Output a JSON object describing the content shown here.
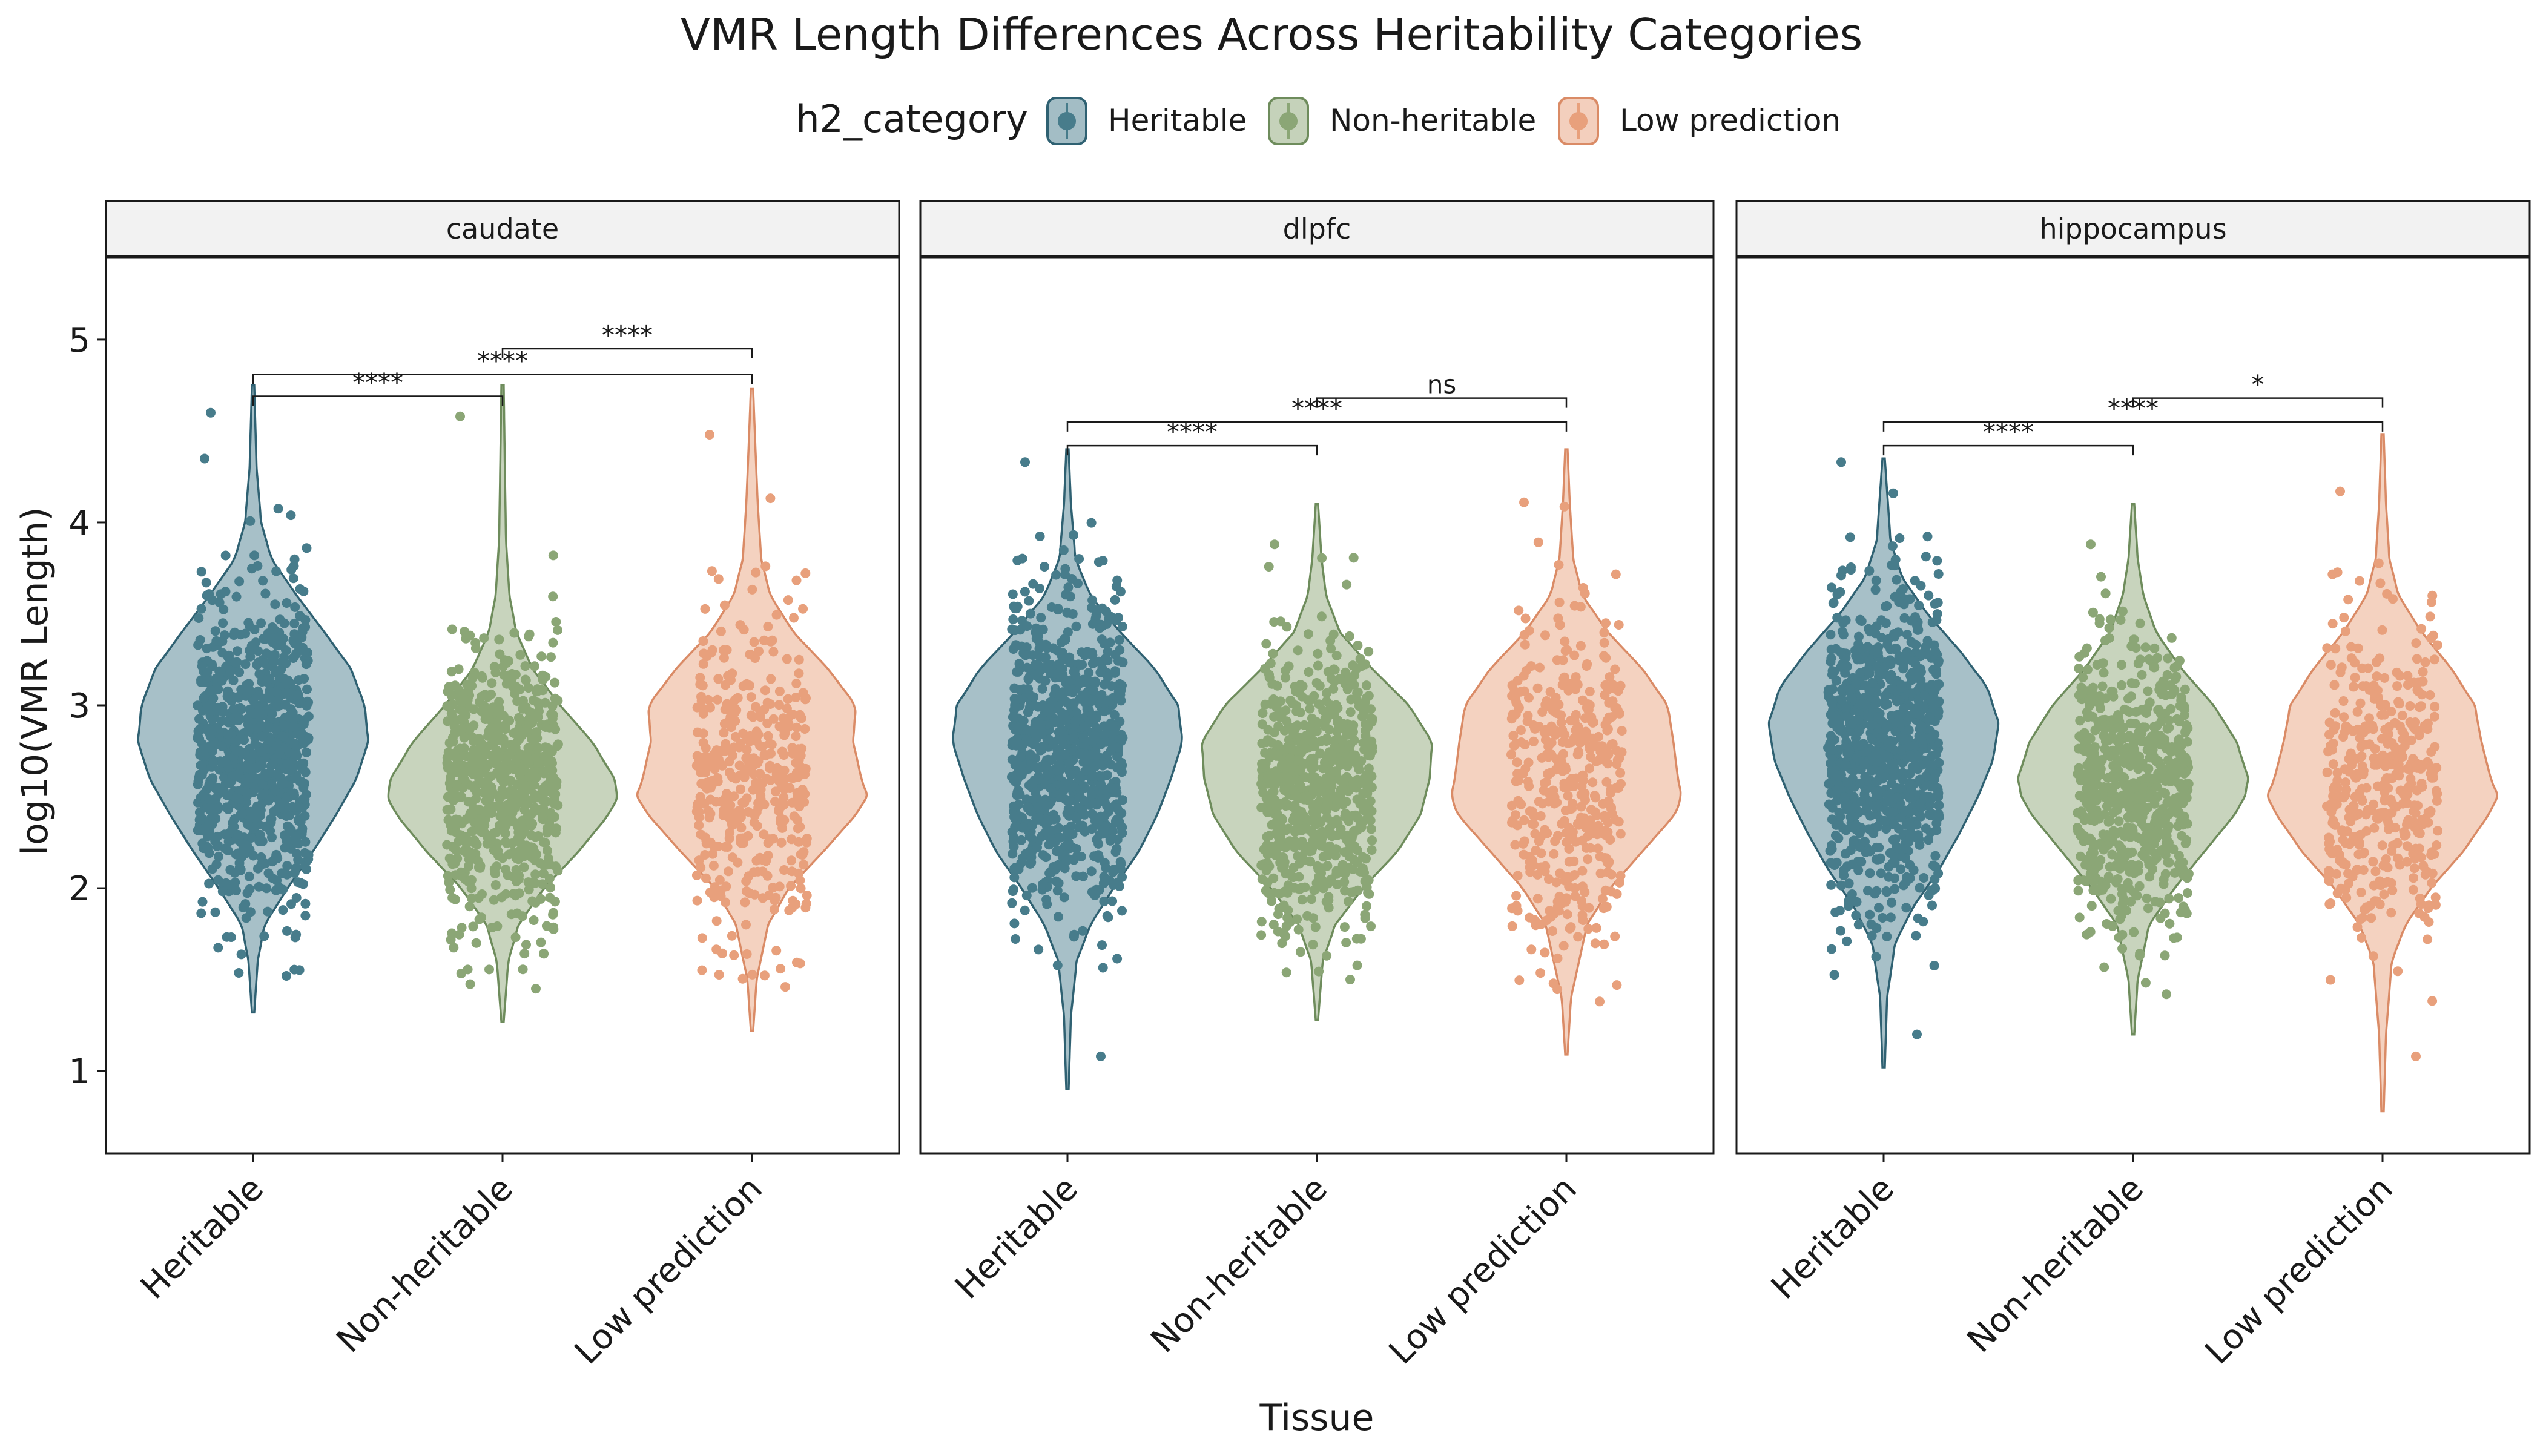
{
  "chart_data": {
    "type": "violin",
    "title": "VMR Length Differences Across Heritability Categories",
    "xlabel": "Tissue",
    "ylabel": "log10(VMR Length)",
    "ylim": [
      0.55,
      5.45
    ],
    "yticks": [
      1,
      2,
      3,
      4,
      5
    ],
    "legend": {
      "title": "h2_category",
      "position": "top",
      "entries": [
        {
          "label": "Heritable",
          "color": "#477C8B"
        },
        {
          "label": "Non-heritable",
          "color": "#8BA676"
        },
        {
          "label": "Low prediction",
          "color": "#E8A07C"
        }
      ]
    },
    "categories": [
      "Heritable",
      "Non-heritable",
      "Low prediction"
    ],
    "panels": [
      {
        "tissue": "caudate",
        "series": [
          {
            "name": "Heritable",
            "min": 1.32,
            "max": 4.75,
            "points_min": 1.52,
            "points_max": 4.6,
            "density": [
              [
                1.32,
                0.01
              ],
              [
                1.6,
                0.04
              ],
              [
                1.8,
                0.1
              ],
              [
                2.0,
                0.3
              ],
              [
                2.2,
                0.52
              ],
              [
                2.4,
                0.72
              ],
              [
                2.6,
                0.9
              ],
              [
                2.8,
                1.0
              ],
              [
                3.0,
                0.97
              ],
              [
                3.2,
                0.85
              ],
              [
                3.4,
                0.62
              ],
              [
                3.6,
                0.38
              ],
              [
                3.8,
                0.16
              ],
              [
                4.0,
                0.07
              ],
              [
                4.3,
                0.03
              ],
              [
                4.75,
                0.01
              ]
            ]
          },
          {
            "name": "Non-heritable",
            "min": 1.27,
            "max": 4.75,
            "points_min": 1.45,
            "points_max": 4.58,
            "density": [
              [
                1.27,
                0.01
              ],
              [
                1.6,
                0.05
              ],
              [
                1.8,
                0.14
              ],
              [
                2.0,
                0.36
              ],
              [
                2.2,
                0.66
              ],
              [
                2.4,
                0.92
              ],
              [
                2.5,
                1.0
              ],
              [
                2.6,
                0.97
              ],
              [
                2.8,
                0.78
              ],
              [
                3.0,
                0.5
              ],
              [
                3.2,
                0.26
              ],
              [
                3.4,
                0.12
              ],
              [
                3.6,
                0.06
              ],
              [
                3.9,
                0.03
              ],
              [
                4.3,
                0.02
              ],
              [
                4.75,
                0.01
              ]
            ]
          },
          {
            "name": "Low prediction",
            "min": 1.22,
            "max": 4.73,
            "points_min": 1.46,
            "points_max": 4.48,
            "density": [
              [
                1.22,
                0.01
              ],
              [
                1.5,
                0.04
              ],
              [
                1.8,
                0.14
              ],
              [
                2.0,
                0.32
              ],
              [
                2.2,
                0.62
              ],
              [
                2.4,
                0.9
              ],
              [
                2.5,
                1.0
              ],
              [
                2.6,
                0.95
              ],
              [
                2.8,
                0.88
              ],
              [
                3.0,
                0.9
              ],
              [
                3.2,
                0.66
              ],
              [
                3.4,
                0.36
              ],
              [
                3.6,
                0.16
              ],
              [
                3.8,
                0.08
              ],
              [
                4.1,
                0.05
              ],
              [
                4.4,
                0.03
              ],
              [
                4.73,
                0.01
              ]
            ]
          }
        ],
        "comparisons": [
          {
            "groups": [
              1,
              2
            ],
            "y": 4.69,
            "label": "****"
          },
          {
            "groups": [
              1,
              3
            ],
            "y": 4.81,
            "label": "****"
          },
          {
            "groups": [
              2,
              3
            ],
            "y": 4.95,
            "label": "****"
          }
        ]
      },
      {
        "tissue": "dlpfc",
        "series": [
          {
            "name": "Heritable",
            "min": 0.9,
            "max": 4.4,
            "points_min": 1.08,
            "points_max": 4.33,
            "density": [
              [
                0.9,
                0.01
              ],
              [
                1.3,
                0.03
              ],
              [
                1.6,
                0.08
              ],
              [
                1.8,
                0.2
              ],
              [
                2.0,
                0.4
              ],
              [
                2.2,
                0.62
              ],
              [
                2.4,
                0.78
              ],
              [
                2.6,
                0.9
              ],
              [
                2.8,
                1.0
              ],
              [
                3.0,
                0.96
              ],
              [
                3.2,
                0.76
              ],
              [
                3.4,
                0.46
              ],
              [
                3.6,
                0.2
              ],
              [
                3.8,
                0.07
              ],
              [
                4.1,
                0.03
              ],
              [
                4.4,
                0.01
              ]
            ]
          },
          {
            "name": "Non-heritable",
            "min": 1.28,
            "max": 4.1,
            "points_min": 1.5,
            "points_max": 3.88,
            "density": [
              [
                1.28,
                0.01
              ],
              [
                1.6,
                0.05
              ],
              [
                1.8,
                0.16
              ],
              [
                2.0,
                0.4
              ],
              [
                2.2,
                0.7
              ],
              [
                2.4,
                0.9
              ],
              [
                2.6,
                0.98
              ],
              [
                2.8,
                1.0
              ],
              [
                3.0,
                0.8
              ],
              [
                3.2,
                0.48
              ],
              [
                3.4,
                0.2
              ],
              [
                3.6,
                0.08
              ],
              [
                3.8,
                0.04
              ],
              [
                4.1,
                0.01
              ]
            ]
          },
          {
            "name": "Low prediction",
            "min": 1.09,
            "max": 4.4,
            "points_min": 1.38,
            "points_max": 4.11,
            "density": [
              [
                1.09,
                0.01
              ],
              [
                1.4,
                0.04
              ],
              [
                1.8,
                0.18
              ],
              [
                2.0,
                0.38
              ],
              [
                2.2,
                0.66
              ],
              [
                2.4,
                0.94
              ],
              [
                2.5,
                1.0
              ],
              [
                2.6,
                0.97
              ],
              [
                2.8,
                0.93
              ],
              [
                3.0,
                0.88
              ],
              [
                3.2,
                0.66
              ],
              [
                3.4,
                0.36
              ],
              [
                3.6,
                0.14
              ],
              [
                3.8,
                0.06
              ],
              [
                4.1,
                0.03
              ],
              [
                4.4,
                0.01
              ]
            ]
          }
        ],
        "comparisons": [
          {
            "groups": [
              1,
              2
            ],
            "y": 4.42,
            "label": "****"
          },
          {
            "groups": [
              1,
              3
            ],
            "y": 4.55,
            "label": "****"
          },
          {
            "groups": [
              2,
              3
            ],
            "y": 4.68,
            "label": "ns"
          }
        ]
      },
      {
        "tissue": "hippocampus",
        "series": [
          {
            "name": "Heritable",
            "min": 1.02,
            "max": 4.35,
            "points_min": 1.2,
            "points_max": 4.33,
            "density": [
              [
                1.02,
                0.01
              ],
              [
                1.4,
                0.03
              ],
              [
                1.7,
                0.1
              ],
              [
                1.9,
                0.26
              ],
              [
                2.1,
                0.48
              ],
              [
                2.3,
                0.66
              ],
              [
                2.5,
                0.82
              ],
              [
                2.7,
                0.95
              ],
              [
                2.9,
                1.0
              ],
              [
                3.1,
                0.9
              ],
              [
                3.3,
                0.66
              ],
              [
                3.5,
                0.38
              ],
              [
                3.7,
                0.16
              ],
              [
                3.9,
                0.06
              ],
              [
                4.35,
                0.01
              ]
            ]
          },
          {
            "name": "Non-heritable",
            "min": 1.2,
            "max": 4.1,
            "points_min": 1.42,
            "points_max": 3.88,
            "density": [
              [
                1.2,
                0.01
              ],
              [
                1.5,
                0.04
              ],
              [
                1.8,
                0.14
              ],
              [
                2.0,
                0.36
              ],
              [
                2.2,
                0.62
              ],
              [
                2.4,
                0.88
              ],
              [
                2.5,
                0.97
              ],
              [
                2.6,
                1.0
              ],
              [
                2.8,
                0.9
              ],
              [
                3.0,
                0.7
              ],
              [
                3.2,
                0.42
              ],
              [
                3.4,
                0.2
              ],
              [
                3.6,
                0.09
              ],
              [
                3.8,
                0.04
              ],
              [
                4.1,
                0.01
              ]
            ]
          },
          {
            "name": "Low prediction",
            "min": 0.78,
            "max": 4.48,
            "points_min": 1.08,
            "points_max": 4.17,
            "density": [
              [
                0.78,
                0.01
              ],
              [
                1.2,
                0.03
              ],
              [
                1.6,
                0.08
              ],
              [
                1.8,
                0.2
              ],
              [
                2.0,
                0.42
              ],
              [
                2.2,
                0.7
              ],
              [
                2.4,
                0.92
              ],
              [
                2.5,
                1.0
              ],
              [
                2.6,
                0.94
              ],
              [
                2.8,
                0.86
              ],
              [
                3.0,
                0.8
              ],
              [
                3.2,
                0.6
              ],
              [
                3.4,
                0.34
              ],
              [
                3.6,
                0.14
              ],
              [
                3.8,
                0.06
              ],
              [
                4.1,
                0.03
              ],
              [
                4.48,
                0.01
              ]
            ]
          }
        ],
        "comparisons": [
          {
            "groups": [
              1,
              2
            ],
            "y": 4.42,
            "label": "****"
          },
          {
            "groups": [
              1,
              3
            ],
            "y": 4.55,
            "label": "****"
          },
          {
            "groups": [
              2,
              3
            ],
            "y": 4.68,
            "label": "*"
          }
        ]
      }
    ]
  }
}
